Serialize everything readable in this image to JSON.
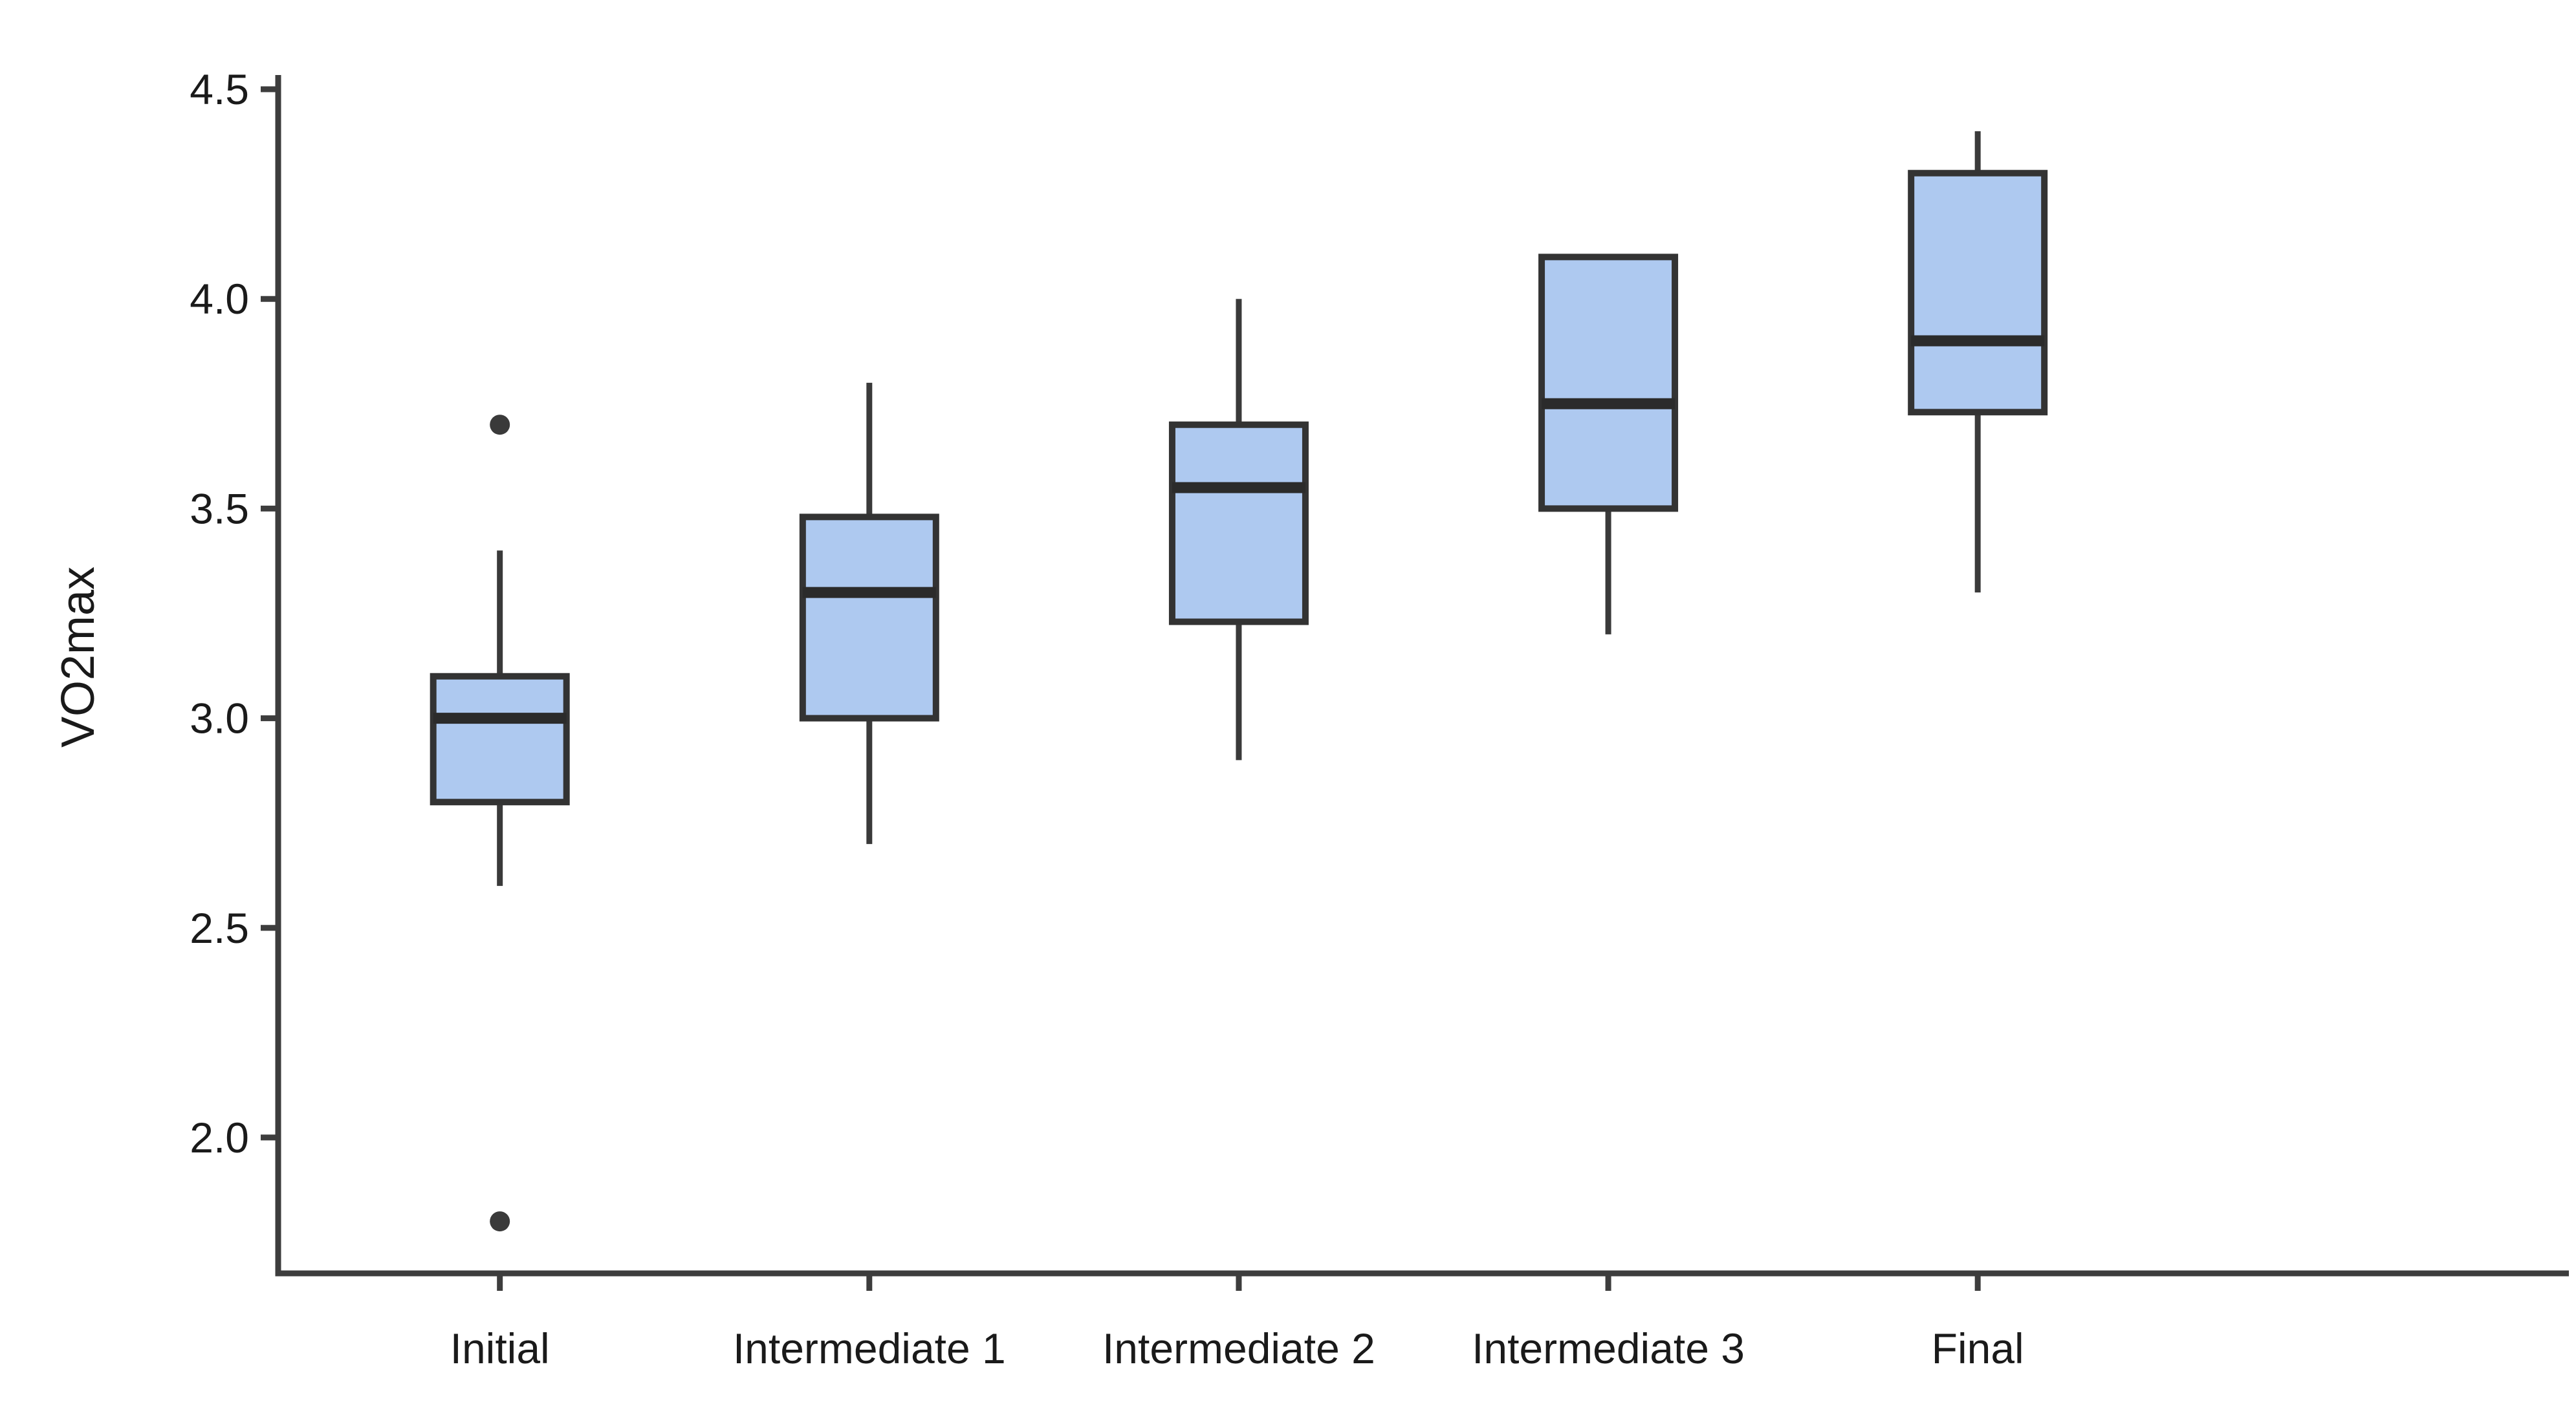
{
  "chart_data": {
    "type": "boxplot",
    "title": "",
    "xlabel": "",
    "ylabel": "VO2max",
    "categories": [
      "Initial",
      "Intermediate 1",
      "Intermediate 2",
      "Intermediate 3",
      "Final"
    ],
    "y_ticks": [
      "2.0",
      "2.5",
      "3.0",
      "3.5",
      "4.0",
      "4.5"
    ],
    "y_tick_values": [
      2.0,
      2.5,
      3.0,
      3.5,
      4.0,
      4.5
    ],
    "ylim": [
      1.676,
      4.534
    ],
    "grid": "off",
    "legend": "none",
    "series": [
      {
        "name": "Initial",
        "min": 2.6,
        "q1": 2.8,
        "median": 3.0,
        "q3": 3.1,
        "max": 3.4,
        "outliers": [
          3.7,
          1.8
        ]
      },
      {
        "name": "Intermediate 1",
        "min": 2.7,
        "q1": 3.0,
        "median": 3.3,
        "q3": 3.48,
        "max": 3.8,
        "outliers": []
      },
      {
        "name": "Intermediate 2",
        "min": 2.9,
        "q1": 3.23,
        "median": 3.55,
        "q3": 3.7,
        "max": 4.0,
        "outliers": []
      },
      {
        "name": "Intermediate 3",
        "min": 3.2,
        "q1": 3.5,
        "median": 3.75,
        "q3": 4.1,
        "max": 4.1,
        "outliers": []
      },
      {
        "name": "Final",
        "min": 3.3,
        "q1": 3.73,
        "median": 3.9,
        "q3": 4.3,
        "max": 4.4,
        "outliers": []
      }
    ],
    "style": {
      "box_fill": "#AEC9F0",
      "box_stroke": "#333333",
      "median_stroke": "#2B2B2B",
      "whisker_stroke": "#3A3A3A",
      "axis_stroke": "#3D3D3D",
      "outlier_fill": "#3A3A3A",
      "text_color": "#1A1A1A"
    }
  }
}
